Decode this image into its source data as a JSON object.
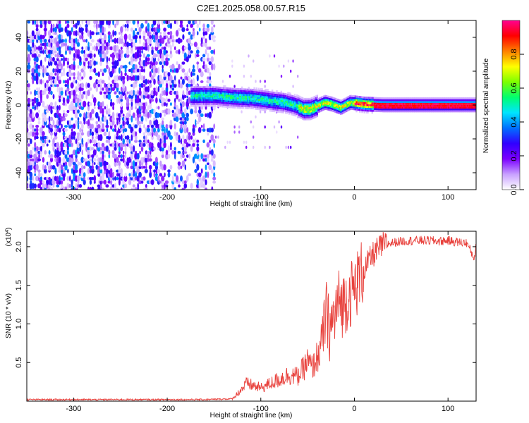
{
  "title": "C2E1.2025.058.00.57.R15",
  "chart_data": [
    {
      "type": "heatmap",
      "title": "C2E1.2025.058.00.57.R15",
      "xlabel": "Height of straight line (km)",
      "ylabel": "Frequency (Hz)",
      "xlim": [
        -350,
        130
      ],
      "ylim": [
        -50,
        50
      ],
      "x_ticks": [
        "-300",
        "-200",
        "-100",
        "0",
        "100"
      ],
      "y_ticks": [
        "-40",
        "-20",
        "0",
        "20",
        "40"
      ],
      "colorbar": {
        "label": "Normalized spectral amplitude",
        "range": [
          0,
          1
        ],
        "ticks": [
          "0.0",
          "0.2",
          "0.4",
          "0.6",
          "0.8"
        ],
        "colors": [
          "#ffffff",
          "#c8a0ff",
          "#7b00ff",
          "#3000ff",
          "#0070ff",
          "#00e5ff",
          "#00ff70",
          "#7dff00",
          "#ffff00",
          "#ff8000",
          "#ff0000",
          "#ff0090"
        ]
      },
      "ridge": {
        "x": [
          -170,
          -150,
          -130,
          -110,
          -90,
          -75,
          -62,
          -55,
          -48,
          -40,
          -32,
          -25,
          -15,
          -5,
          10,
          30,
          60,
          100,
          130
        ],
        "y": [
          6,
          6,
          5,
          4.5,
          3,
          2,
          0,
          -2,
          -2,
          0,
          2,
          1,
          -1,
          2,
          1,
          0.5,
          0.5,
          0.5,
          0.5
        ]
      }
    },
    {
      "type": "line",
      "xlabel": "Height of straight line (km)",
      "ylabel": "SNR (10 * v/v)",
      "y_multiplier": "(x10",
      "y_multiplier_exp": "4",
      "xlim": [
        -350,
        130
      ],
      "ylim": [
        0,
        2.2
      ],
      "x_ticks": [
        "-300",
        "-200",
        "-100",
        "0",
        "100"
      ],
      "y_ticks": [
        "0.5",
        "1.0",
        "1.5",
        "2.0"
      ],
      "series": [
        {
          "color": "#e8413c",
          "x": [
            -350,
            -300,
            -250,
            -200,
            -160,
            -130,
            -115,
            -100,
            -90,
            -80,
            -70,
            -60,
            -50,
            -45,
            -40,
            -36,
            -33,
            -30,
            -27,
            -24,
            -20,
            -16,
            -12,
            -8,
            -4,
            0,
            5,
            10,
            15,
            20,
            30,
            40,
            50,
            60,
            70,
            80,
            90,
            100,
            110,
            120,
            128,
            130
          ],
          "y": [
            0.02,
            0.02,
            0.02,
            0.02,
            0.02,
            0.03,
            0.2,
            0.15,
            0.2,
            0.25,
            0.3,
            0.28,
            0.45,
            0.38,
            0.5,
            0.6,
            0.8,
            1.05,
            0.95,
            1.0,
            1.15,
            1.3,
            1.25,
            1.35,
            1.4,
            1.45,
            1.6,
            1.7,
            1.8,
            1.9,
            2.02,
            2.05,
            2.07,
            2.08,
            2.08,
            2.08,
            2.07,
            2.08,
            2.06,
            2.05,
            1.85,
            2.02
          ]
        }
      ]
    }
  ]
}
